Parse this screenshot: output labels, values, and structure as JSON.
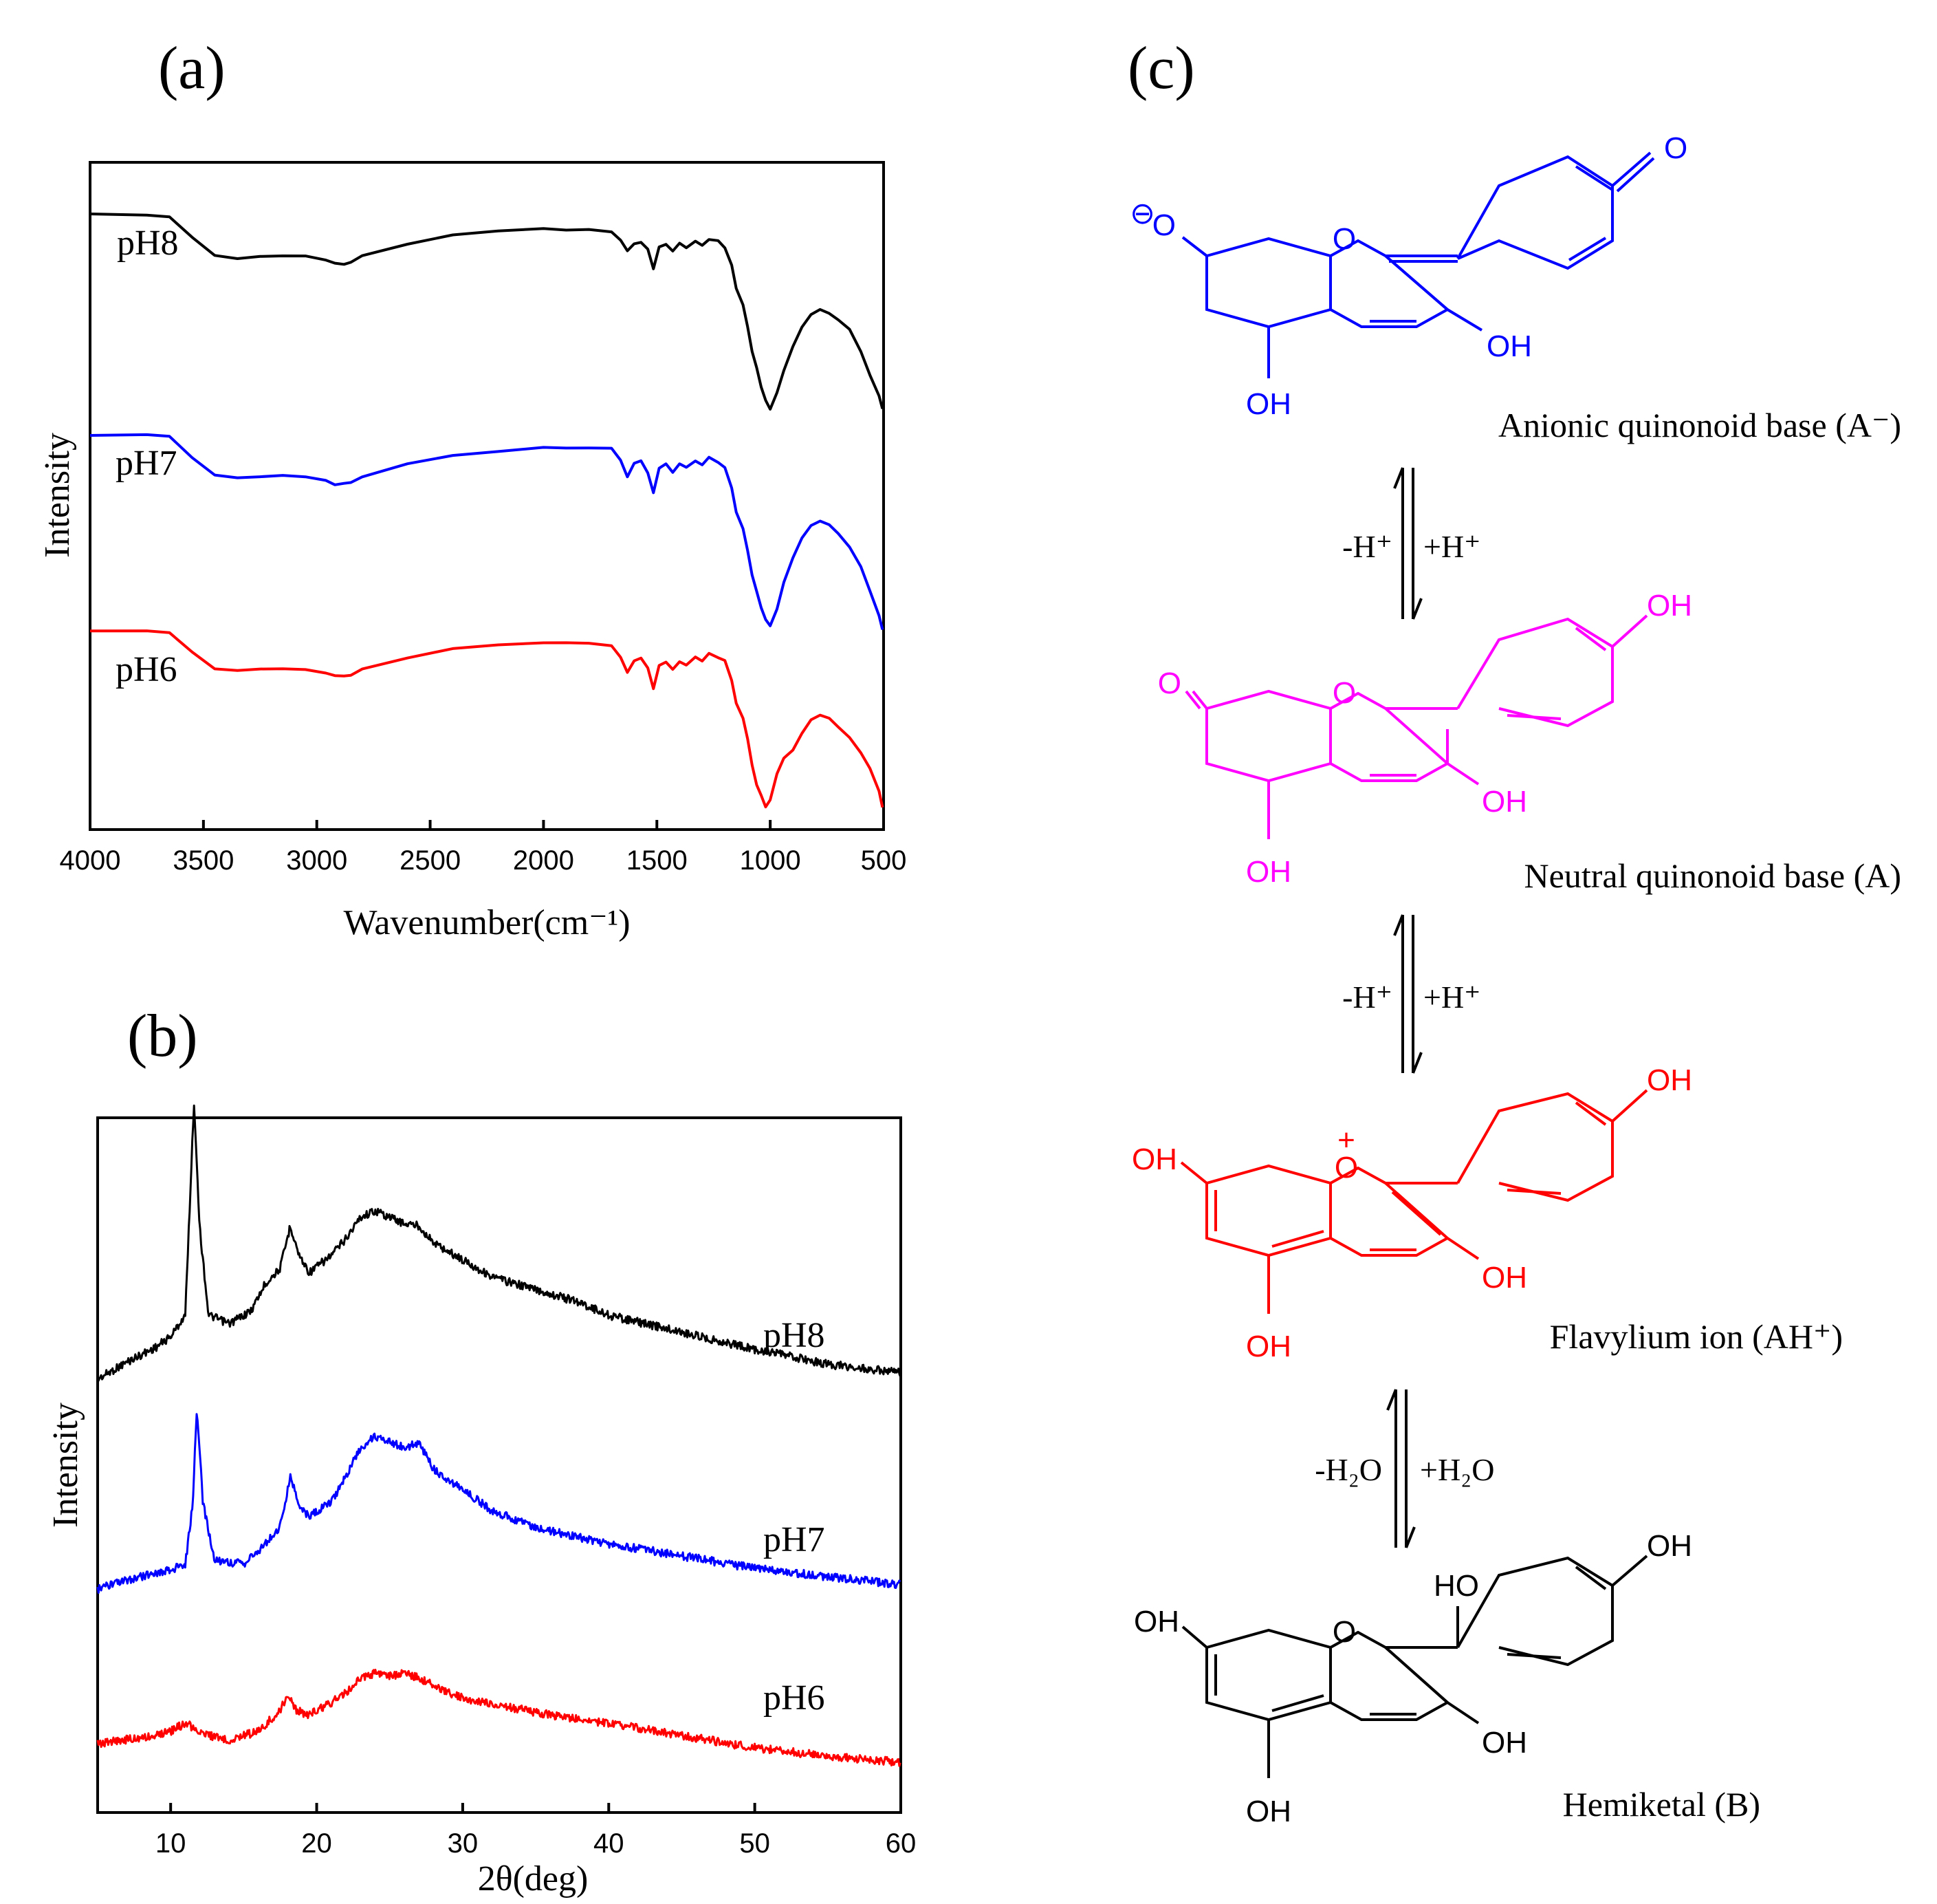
{
  "figure": {
    "panel_labels": [
      "(a)",
      "(b)",
      "(c)"
    ]
  },
  "chart_data": [
    {
      "type": "line",
      "panel": "(a)",
      "title": "",
      "xlabel": "Wavenumber(cm⁻¹)",
      "ylabel": "Intensity",
      "xlim": [
        4000,
        500
      ],
      "x_reversed": true,
      "xticks": [
        4000,
        3500,
        3000,
        2500,
        2000,
        1500,
        1000,
        500
      ],
      "yticks_shown": false,
      "series": [
        {
          "name": "pH8",
          "color": "#000000",
          "x": [
            4000,
            3750,
            3650,
            3550,
            3450,
            3350,
            3250,
            3150,
            3050,
            2960,
            2920,
            2880,
            2850,
            2800,
            2600,
            2400,
            2200,
            2000,
            1900,
            1800,
            1700,
            1660,
            1630,
            1600,
            1570,
            1540,
            1515,
            1490,
            1460,
            1430,
            1400,
            1370,
            1330,
            1300,
            1270,
            1230,
            1200,
            1170,
            1150,
            1120,
            1100,
            1080,
            1060,
            1040,
            1020,
            1000,
            970,
            940,
            900,
            860,
            820,
            780,
            740,
            700,
            650,
            600,
            560,
            520,
            505
          ],
          "y": [
            0.96,
            0.96,
            0.95,
            0.85,
            0.76,
            0.75,
            0.76,
            0.76,
            0.76,
            0.74,
            0.72,
            0.72,
            0.73,
            0.76,
            0.82,
            0.86,
            0.88,
            0.89,
            0.89,
            0.89,
            0.88,
            0.84,
            0.78,
            0.82,
            0.83,
            0.79,
            0.7,
            0.8,
            0.82,
            0.78,
            0.82,
            0.8,
            0.83,
            0.81,
            0.84,
            0.83,
            0.8,
            0.72,
            0.6,
            0.52,
            0.42,
            0.3,
            0.22,
            0.12,
            0.06,
            0.02,
            0.1,
            0.2,
            0.32,
            0.42,
            0.48,
            0.5,
            0.48,
            0.45,
            0.4,
            0.3,
            0.18,
            0.08,
            0.02
          ]
        },
        {
          "name": "pH7",
          "color": "#0000ff",
          "x": [
            4000,
            3750,
            3650,
            3550,
            3450,
            3350,
            3250,
            3150,
            3050,
            2960,
            2920,
            2880,
            2850,
            2800,
            2600,
            2400,
            2200,
            2000,
            1900,
            1800,
            1700,
            1660,
            1630,
            1600,
            1570,
            1540,
            1515,
            1490,
            1460,
            1430,
            1400,
            1370,
            1330,
            1300,
            1270,
            1230,
            1200,
            1170,
            1150,
            1120,
            1100,
            1080,
            1060,
            1040,
            1020,
            1000,
            970,
            940,
            900,
            860,
            820,
            780,
            740,
            700,
            650,
            600,
            560,
            520,
            505
          ],
          "y": [
            0.96,
            0.96,
            0.95,
            0.85,
            0.76,
            0.75,
            0.76,
            0.76,
            0.76,
            0.74,
            0.72,
            0.72,
            0.73,
            0.76,
            0.82,
            0.86,
            0.88,
            0.9,
            0.9,
            0.9,
            0.89,
            0.84,
            0.76,
            0.82,
            0.83,
            0.78,
            0.68,
            0.8,
            0.82,
            0.78,
            0.82,
            0.8,
            0.83,
            0.81,
            0.85,
            0.83,
            0.8,
            0.7,
            0.58,
            0.5,
            0.4,
            0.28,
            0.2,
            0.12,
            0.06,
            0.03,
            0.12,
            0.24,
            0.36,
            0.46,
            0.52,
            0.54,
            0.52,
            0.48,
            0.42,
            0.32,
            0.2,
            0.08,
            0.02
          ]
        },
        {
          "name": "pH6",
          "color": "#ff0000",
          "x": [
            4000,
            3750,
            3650,
            3550,
            3450,
            3350,
            3250,
            3150,
            3050,
            2960,
            2920,
            2880,
            2850,
            2800,
            2600,
            2400,
            2200,
            2000,
            1900,
            1800,
            1700,
            1660,
            1630,
            1600,
            1570,
            1540,
            1515,
            1490,
            1460,
            1430,
            1400,
            1370,
            1330,
            1300,
            1270,
            1230,
            1200,
            1170,
            1150,
            1120,
            1100,
            1080,
            1060,
            1040,
            1020,
            1000,
            970,
            940,
            900,
            860,
            820,
            780,
            740,
            700,
            650,
            600,
            560,
            520,
            505
          ],
          "y": [
            0.96,
            0.96,
            0.95,
            0.85,
            0.76,
            0.75,
            0.76,
            0.76,
            0.76,
            0.74,
            0.72,
            0.72,
            0.73,
            0.76,
            0.82,
            0.86,
            0.88,
            0.89,
            0.89,
            0.89,
            0.88,
            0.82,
            0.74,
            0.8,
            0.82,
            0.76,
            0.66,
            0.78,
            0.8,
            0.76,
            0.8,
            0.78,
            0.82,
            0.8,
            0.84,
            0.82,
            0.8,
            0.7,
            0.58,
            0.5,
            0.4,
            0.26,
            0.16,
            0.1,
            0.04,
            0.08,
            0.22,
            0.3,
            0.34,
            0.42,
            0.5,
            0.52,
            0.5,
            0.46,
            0.4,
            0.32,
            0.24,
            0.12,
            0.04
          ]
        }
      ]
    },
    {
      "type": "line",
      "panel": "(b)",
      "title": "",
      "xlabel": "2θ(deg)",
      "ylabel": "Intensity",
      "xlim": [
        5,
        60
      ],
      "xticks": [
        10,
        20,
        30,
        40,
        50,
        60
      ],
      "yticks_shown": false,
      "series": [
        {
          "name": "pH8",
          "color": "#000000",
          "x": [
            5,
            7,
            9,
            10,
            11,
            11.3,
            11.6,
            12,
            12.6,
            14,
            15.5,
            16.5,
            17.5,
            18.2,
            18.8,
            19.5,
            21,
            22,
            23,
            24,
            25,
            26,
            27,
            28,
            30,
            32,
            35,
            38,
            40,
            45,
            50,
            55,
            60
          ],
          "y": [
            0.0,
            0.08,
            0.15,
            0.2,
            0.3,
            0.8,
            1.3,
            0.7,
            0.3,
            0.26,
            0.32,
            0.45,
            0.52,
            0.72,
            0.58,
            0.5,
            0.58,
            0.66,
            0.76,
            0.79,
            0.76,
            0.73,
            0.72,
            0.64,
            0.56,
            0.48,
            0.42,
            0.36,
            0.3,
            0.22,
            0.14,
            0.07,
            0.03
          ]
        },
        {
          "name": "pH7",
          "color": "#0000ff",
          "x": [
            5,
            7,
            9,
            10,
            11,
            11.5,
            11.8,
            12.2,
            13,
            15,
            16.5,
            17.5,
            18.2,
            18.8,
            19.5,
            21,
            22,
            23,
            24,
            25,
            26,
            27,
            28,
            30,
            32,
            35,
            38,
            40,
            45,
            50,
            55,
            60
          ],
          "y": [
            0.0,
            0.04,
            0.08,
            0.09,
            0.12,
            0.4,
            0.88,
            0.42,
            0.14,
            0.12,
            0.22,
            0.3,
            0.55,
            0.4,
            0.35,
            0.42,
            0.55,
            0.68,
            0.74,
            0.72,
            0.68,
            0.71,
            0.58,
            0.48,
            0.38,
            0.3,
            0.25,
            0.22,
            0.16,
            0.1,
            0.06,
            0.02
          ]
        },
        {
          "name": "pH6",
          "color": "#ff0000",
          "x": [
            5,
            7,
            9,
            10,
            11,
            11.5,
            12.5,
            14,
            16,
            17.5,
            18,
            18.6,
            19.5,
            21,
            22,
            23,
            24,
            25,
            26,
            27,
            28,
            30,
            33,
            36,
            40,
            45,
            50,
            55,
            60
          ],
          "y": [
            0.0,
            0.02,
            0.04,
            0.06,
            0.1,
            0.08,
            0.04,
            0.02,
            0.06,
            0.16,
            0.24,
            0.16,
            0.14,
            0.2,
            0.25,
            0.32,
            0.34,
            0.33,
            0.34,
            0.32,
            0.28,
            0.22,
            0.18,
            0.14,
            0.1,
            0.04,
            -0.02,
            -0.06,
            -0.09
          ]
        }
      ]
    }
  ],
  "panel_c": {
    "species": [
      {
        "id": "anionic",
        "label": "Anionic quinonoid base (A⁻)",
        "color": "#0000ff",
        "atoms": {
          "top_o": "O",
          "carbonyl_o": "O",
          "anion_o": "O",
          "oh3": "OH",
          "oh5": "OH",
          "charge": "⊖"
        }
      },
      {
        "id": "neutral",
        "label": "Neutral quinonoid base (A)",
        "color": "#ff00ff",
        "atoms": {
          "top_o": "O",
          "carbonyl_o": "O",
          "oh3": "OH",
          "oh5": "OH",
          "oh4p": "OH"
        }
      },
      {
        "id": "flavylium",
        "label": "Flavylium ion (AH⁺)",
        "color": "#ff0000",
        "atoms": {
          "top_o": "O",
          "oh7": "OH",
          "oh3": "OH",
          "oh5": "OH",
          "oh4p": "OH",
          "charge": "+"
        }
      },
      {
        "id": "hemiketal",
        "label": "Hemiketal (B)",
        "color": "#000000",
        "atoms": {
          "top_o": "O",
          "oh7": "OH",
          "oh3": "OH",
          "oh5": "OH",
          "oh4p": "OH",
          "ho2": "HO"
        }
      }
    ],
    "equilibria": [
      {
        "left": "-H⁺",
        "right": "+H⁺"
      },
      {
        "left": "-H⁺",
        "right": "+H⁺"
      },
      {
        "left": "-H₂O",
        "right": "+H₂O"
      }
    ]
  }
}
